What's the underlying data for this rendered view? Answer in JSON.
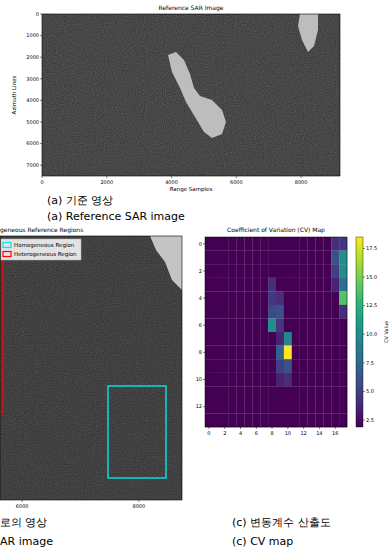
{
  "chart_data": [
    {
      "type": "image",
      "title": "Reference SAR Image",
      "x_label": "Range Samples",
      "y_label": "Azimuth Lines",
      "xlim": [
        0,
        9200
      ],
      "ylim": [
        0,
        7500
      ],
      "xticks": [
        0,
        2000,
        4000,
        6000,
        8000
      ],
      "yticks": [
        0,
        1000,
        2000,
        3000,
        4000,
        5000,
        6000,
        7000
      ],
      "annotations": [
        "(a) 기준 영상",
        "(a) Reference SAR image"
      ]
    },
    {
      "type": "image",
      "title": "geneous Reference Regions",
      "xlim": [
        5620,
        8740
      ],
      "xticks": [
        6000,
        8000
      ],
      "legend": "upper left",
      "series": [
        {
          "name": "Homogeneous Region",
          "color": "#00e5ee"
        },
        {
          "name": "Heterogeneous Region",
          "color": "#ff0000"
        }
      ],
      "annotations": [
        "로의 영상",
        "AR image"
      ]
    },
    {
      "type": "heatmap",
      "title": "Coefficient of Variation (CV) Map",
      "xlim": [
        -0.5,
        17.5
      ],
      "ylim": [
        -0.5,
        13.5
      ],
      "xticks": [
        0,
        2,
        4,
        6,
        8,
        10,
        12,
        14,
        16
      ],
      "yticks": [
        0,
        2,
        4,
        6,
        8,
        10,
        12
      ],
      "colorbar_label": "CV Value",
      "colorbar_range": [
        1.9,
        18.5
      ],
      "colorbar_ticks": [
        2.5,
        {
          "value": 5,
          "label": "5.0"
        },
        7.5,
        {
          "value": 10,
          "label": "10.0"
        },
        12.5,
        {
          "value": 15,
          "label": "15.0"
        },
        17.5
      ],
      "cells": [
        [
          1.9,
          1.9,
          1.9,
          1.9,
          1.9,
          1.9,
          1.9,
          1.9,
          1.9,
          1.9,
          1.9,
          1.9,
          1.9,
          1.9,
          1.9,
          1.9,
          4,
          4.5
        ],
        [
          1.9,
          1.9,
          1.9,
          1.9,
          1.9,
          1.9,
          1.9,
          1.9,
          1.9,
          1.9,
          1.9,
          1.9,
          1.9,
          1.9,
          1.9,
          1.9,
          6,
          10
        ],
        [
          1.9,
          1.9,
          1.9,
          1.9,
          1.9,
          1.9,
          1.9,
          1.9,
          1.9,
          1.9,
          1.9,
          1.9,
          1.9,
          1.9,
          1.9,
          1.9,
          5,
          10
        ],
        [
          1.9,
          1.9,
          1.9,
          1.9,
          1.9,
          1.9,
          1.9,
          1.9,
          4,
          1.9,
          1.9,
          1.9,
          1.9,
          1.9,
          1.9,
          1.9,
          3.5,
          8
        ],
        [
          1.9,
          1.9,
          1.9,
          1.9,
          1.9,
          1.9,
          1.9,
          1.9,
          4.5,
          4,
          1.9,
          1.9,
          1.9,
          1.9,
          1.9,
          1.9,
          1.9,
          14
        ],
        [
          1.9,
          1.9,
          1.9,
          1.9,
          1.9,
          1.9,
          1.9,
          1.9,
          5.5,
          6,
          1.9,
          1.9,
          1.9,
          1.9,
          1.9,
          1.9,
          1.9,
          4
        ],
        [
          1.9,
          1.9,
          1.9,
          1.9,
          1.9,
          1.9,
          1.9,
          1.9,
          10,
          4.5,
          1.9,
          1.9,
          1.9,
          1.9,
          1.9,
          1.9,
          1.9,
          1.9
        ],
        [
          1.9,
          1.9,
          1.9,
          1.9,
          1.9,
          1.9,
          1.9,
          1.9,
          1.9,
          3.5,
          9.5,
          1.9,
          1.9,
          1.9,
          1.9,
          1.9,
          1.9,
          1.9
        ],
        [
          1.9,
          1.9,
          1.9,
          1.9,
          1.9,
          1.9,
          1.9,
          1.9,
          1.9,
          7,
          18.5,
          1.9,
          1.9,
          1.9,
          1.9,
          1.9,
          1.9,
          1.9
        ],
        [
          1.9,
          1.9,
          1.9,
          1.9,
          1.9,
          1.9,
          1.9,
          1.9,
          1.9,
          5,
          6,
          1.9,
          1.9,
          1.9,
          1.9,
          1.9,
          1.9,
          1.9
        ],
        [
          1.9,
          1.9,
          1.9,
          1.9,
          1.9,
          1.9,
          1.9,
          1.9,
          1.9,
          3.5,
          4,
          1.9,
          1.9,
          1.9,
          1.9,
          1.9,
          1.9,
          1.9
        ],
        [
          1.9,
          1.9,
          1.9,
          1.9,
          1.9,
          1.9,
          1.9,
          1.9,
          1.9,
          1.9,
          1.9,
          1.9,
          1.9,
          1.9,
          1.9,
          1.9,
          1.9,
          1.9
        ],
        [
          1.9,
          1.9,
          1.9,
          1.9,
          1.9,
          1.9,
          1.9,
          1.9,
          1.9,
          1.9,
          1.9,
          1.9,
          1.9,
          1.9,
          1.9,
          1.9,
          1.9,
          1.9
        ],
        [
          1.9,
          1.9,
          1.9,
          1.9,
          1.9,
          1.9,
          1.9,
          1.9,
          1.9,
          1.9,
          1.9,
          1.9,
          1.9,
          1.9,
          1.9,
          1.9,
          1.9,
          1.9
        ]
      ],
      "annotations": [
        "(c) 변동계수 산출도",
        "(c) CV map"
      ]
    }
  ]
}
